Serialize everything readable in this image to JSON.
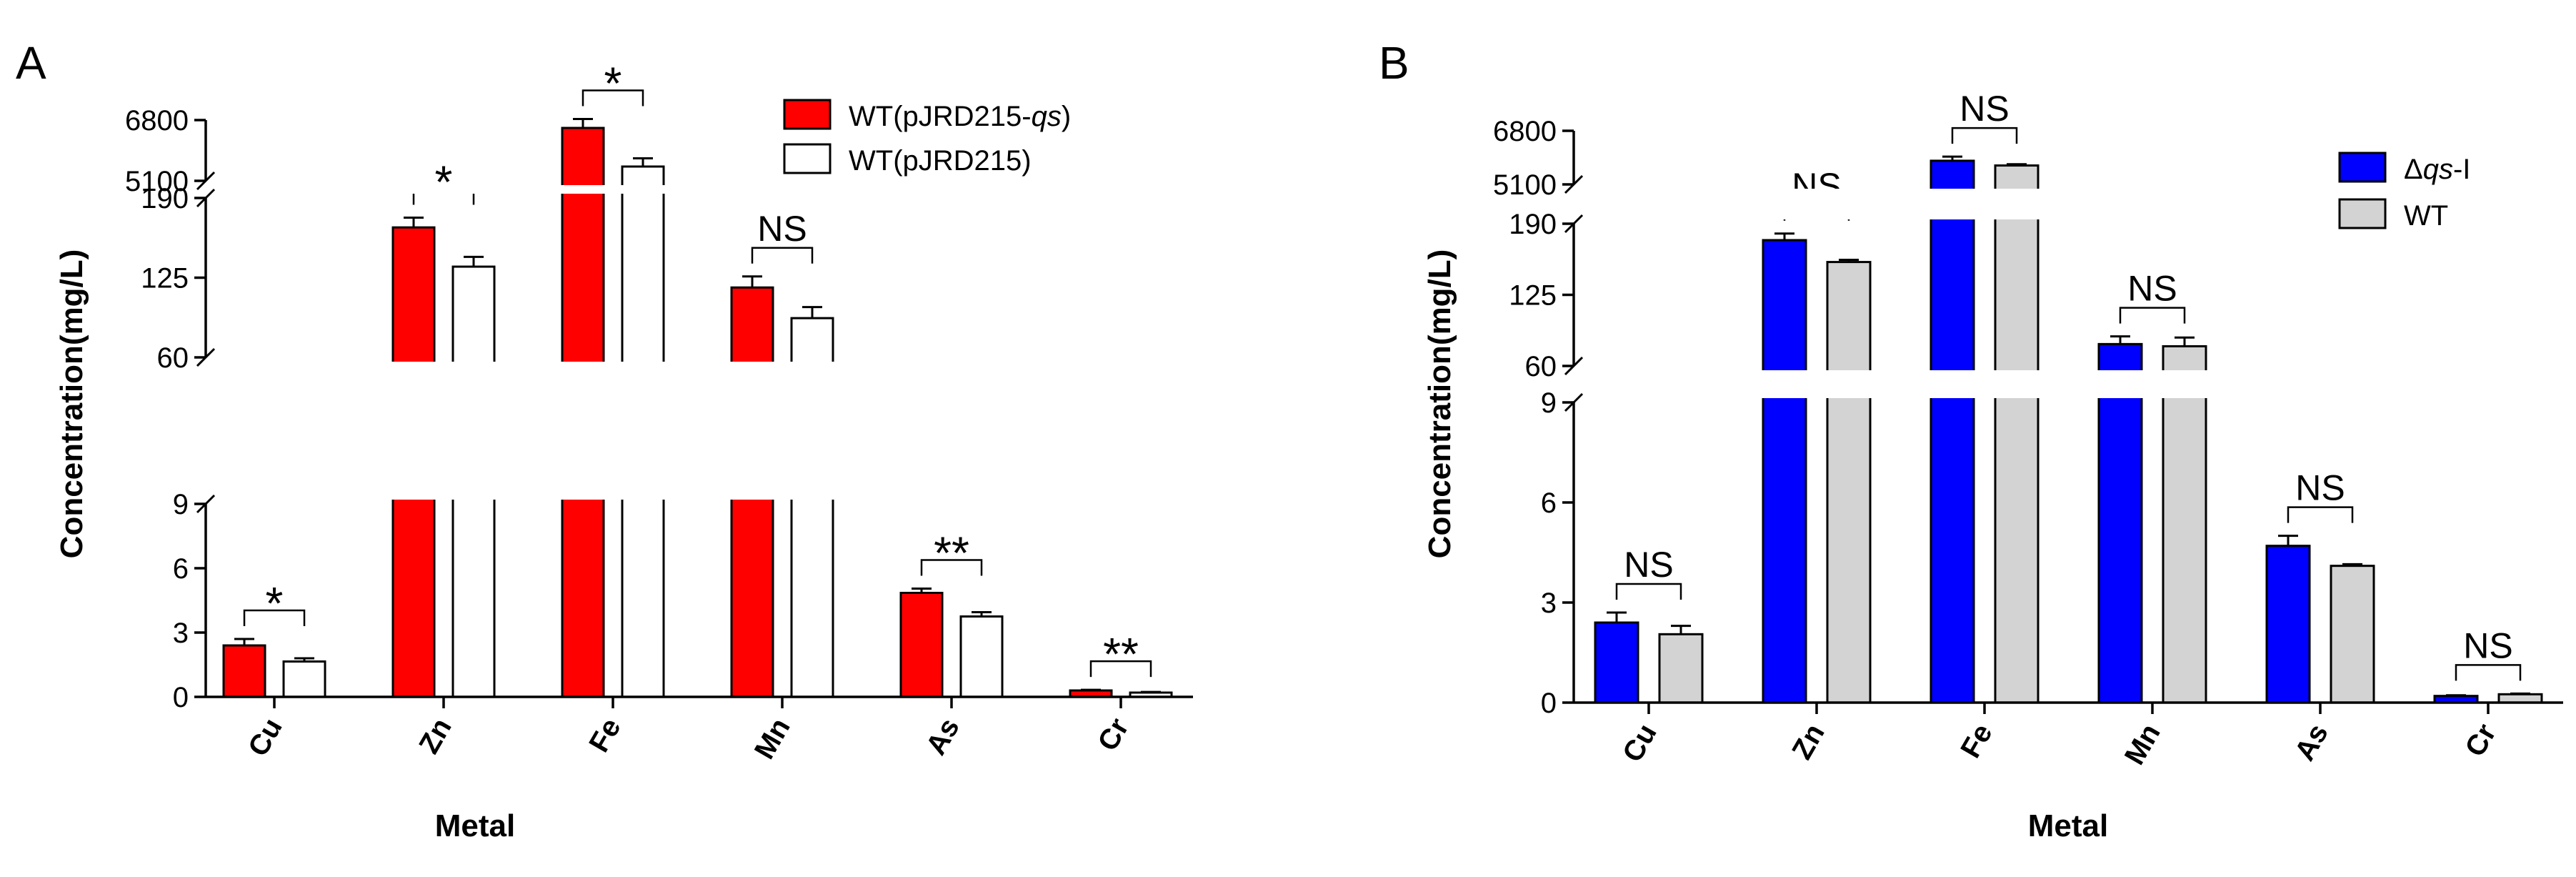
{
  "chart_data": [
    {
      "type": "bar",
      "panel": "A",
      "xlabel": "Metal",
      "ylabel": "Concentration(mg/L)",
      "axis": "broken",
      "segments": [
        {
          "range": [
            0,
            9
          ],
          "ticks": [
            0,
            3,
            6,
            9
          ]
        },
        {
          "range": [
            60,
            190
          ],
          "ticks": [
            60,
            125,
            190
          ]
        },
        {
          "range": [
            5100,
            6800
          ],
          "ticks": [
            5100,
            6800
          ]
        }
      ],
      "categories": [
        "Cu",
        "Zn",
        "Fe",
        "Mn",
        "As",
        "Cr"
      ],
      "series": [
        {
          "name": "WT(pJRD215-",
          "name_italic": "qs",
          "name_tail": ")",
          "color": "#ff0000",
          "values": [
            2.4,
            166,
            6580,
            117,
            4.85,
            0.3
          ],
          "errors": [
            0.3,
            8,
            250,
            9,
            0.2,
            0.03
          ]
        },
        {
          "name": "WT(pJRD215)",
          "name_italic": "",
          "name_tail": "",
          "color": "#ffffff",
          "values": [
            1.65,
            134,
            5500,
            92,
            3.75,
            0.2
          ],
          "errors": [
            0.15,
            8,
            230,
            9,
            0.2,
            0.03
          ]
        }
      ],
      "significance": [
        "*",
        "*",
        "*",
        "NS",
        "**",
        "**"
      ],
      "legend_position": "top-right"
    },
    {
      "type": "bar",
      "panel": "B",
      "xlabel": "Metal",
      "ylabel": "Concentration(mg/L)",
      "axis": "broken",
      "segments": [
        {
          "range": [
            0,
            9
          ],
          "ticks": [
            0,
            3,
            6,
            9
          ]
        },
        {
          "range": [
            60,
            190
          ],
          "ticks": [
            60,
            125,
            190
          ]
        },
        {
          "range": [
            5100,
            6800
          ],
          "ticks": [
            5100,
            6800
          ]
        }
      ],
      "categories": [
        "Cu",
        "Zn",
        "Fe",
        "Mn",
        "As",
        "Cr"
      ],
      "series": [
        {
          "name": "Δ",
          "name_italic": "qs",
          "name_tail": "-I",
          "color": "#0000ff",
          "values": [
            2.4,
            175,
            5850,
            80,
            4.7,
            0.2
          ],
          "errors": [
            0.3,
            6,
            130,
            7,
            0.3,
            0.02
          ]
        },
        {
          "name": "WT",
          "name_italic": "",
          "name_tail": "",
          "color": "#d3d3d3",
          "values": [
            2.05,
            155,
            5700,
            78,
            4.1,
            0.25
          ],
          "errors": [
            0.25,
            2,
            40,
            8,
            0.05,
            0.02
          ]
        }
      ],
      "significance": [
        "NS",
        "NS",
        "NS",
        "NS",
        "NS",
        "NS"
      ],
      "legend_position": "top-right"
    }
  ],
  "panel_labels": [
    "A",
    "B"
  ]
}
